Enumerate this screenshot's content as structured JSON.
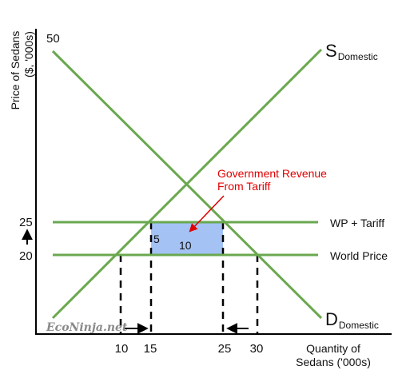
{
  "axes": {
    "y_label_line1": "Price of Sedans",
    "y_label_line2": "($, '000s)",
    "x_label_line1": "Quantity of",
    "x_label_line2": "Sedans ('000s)"
  },
  "y_ticks": [
    "50",
    "25",
    "20"
  ],
  "x_ticks": [
    "10",
    "15",
    "25",
    "30"
  ],
  "curves": {
    "supply_main": "S",
    "supply_sub": "Domestic",
    "demand_main": "D",
    "demand_sub": "Domestic"
  },
  "lines": {
    "wp_tariff": "WP + Tariff",
    "world_price": "World Price"
  },
  "annotation": {
    "line1": "Government Revenue",
    "line2": "From Tariff",
    "color": "#e00000"
  },
  "area_labels": {
    "height": "5",
    "width": "10"
  },
  "watermark": "EcoNinja.net",
  "colors": {
    "curves": "#6aa84f",
    "revenue_fill": "#a4c2f4"
  }
}
